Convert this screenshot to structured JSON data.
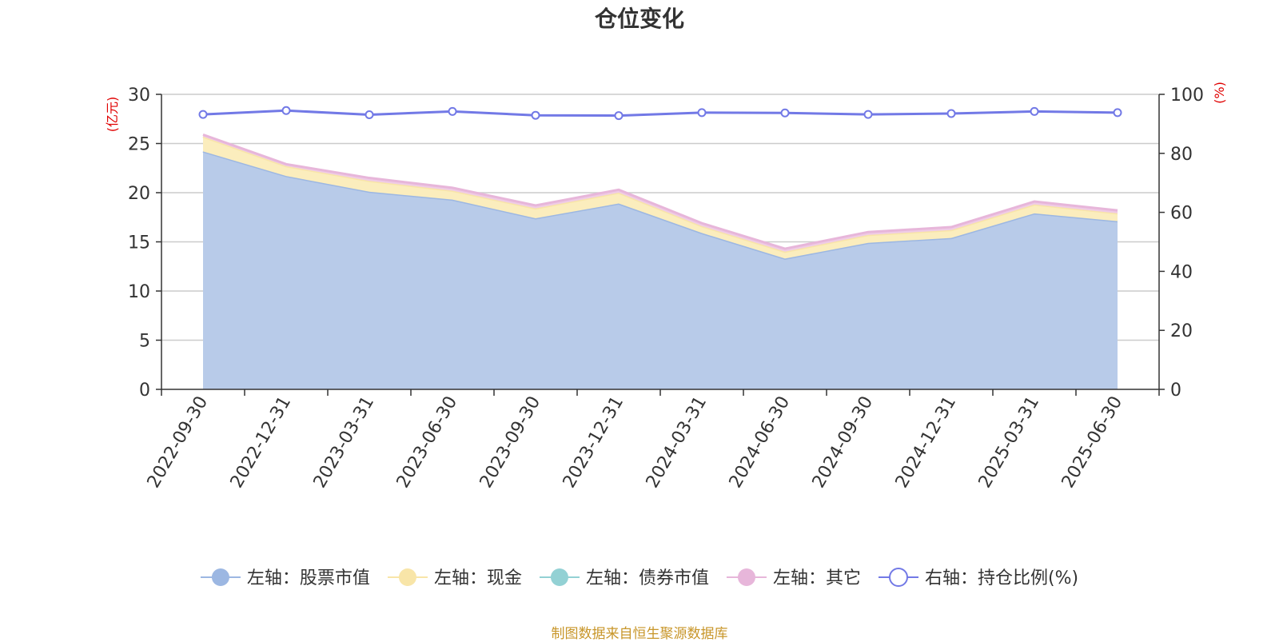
{
  "chart_data": {
    "type": "area",
    "title": "仓位变化",
    "source": "制图数据来自恒生聚源数据库",
    "left_unit": "(亿元)",
    "right_unit": "(%)",
    "categories": [
      "2022-09-30",
      "2022-12-31",
      "2023-03-31",
      "2023-06-30",
      "2023-09-30",
      "2023-12-31",
      "2024-03-31",
      "2024-06-30",
      "2024-09-30",
      "2024-12-31",
      "2025-03-31",
      "2025-06-30"
    ],
    "left_axis": {
      "min": 0,
      "max": 30,
      "ticks": [
        "0",
        "5",
        "10",
        "15",
        "20",
        "25",
        "30"
      ]
    },
    "right_axis": {
      "min": 0,
      "max": 100,
      "ticks": [
        "0",
        "20",
        "40",
        "60",
        "80",
        "100"
      ]
    },
    "grid": true,
    "stacked": true,
    "series": [
      {
        "name": "左轴：股票市值",
        "axis": "left",
        "color": "#9cb7e2",
        "fill": "#b8cbe9",
        "values": [
          24.2,
          21.7,
          20.1,
          19.3,
          17.4,
          18.9,
          15.9,
          13.3,
          14.9,
          15.4,
          17.9,
          17.1
        ]
      },
      {
        "name": "左轴：现金",
        "axis": "left",
        "color": "#f8e5a8",
        "fill": "#fbedbd",
        "values": [
          1.5,
          1.0,
          1.1,
          0.9,
          1.0,
          1.1,
          0.7,
          0.7,
          0.8,
          0.8,
          0.9,
          0.8
        ]
      },
      {
        "name": "左轴：债券市值",
        "axis": "left",
        "color": "#93d1d4",
        "fill": "#b6e0e2",
        "values": [
          0,
          0,
          0,
          0,
          0,
          0,
          0,
          0,
          0,
          0,
          0,
          0
        ]
      },
      {
        "name": "左轴：其它",
        "axis": "left",
        "color": "#e7b6da",
        "fill": "#efcbe5",
        "values": [
          0.2,
          0.2,
          0.3,
          0.3,
          0.3,
          0.3,
          0.3,
          0.3,
          0.3,
          0.3,
          0.3,
          0.3
        ]
      },
      {
        "name": "右轴：持仓比例(%)",
        "axis": "right",
        "color": "#7279e6",
        "values": [
          93.2,
          94.5,
          93.1,
          94.2,
          92.9,
          92.8,
          93.8,
          93.7,
          93.2,
          93.5,
          94.2,
          93.8
        ]
      }
    ],
    "legend_position": "bottom"
  }
}
